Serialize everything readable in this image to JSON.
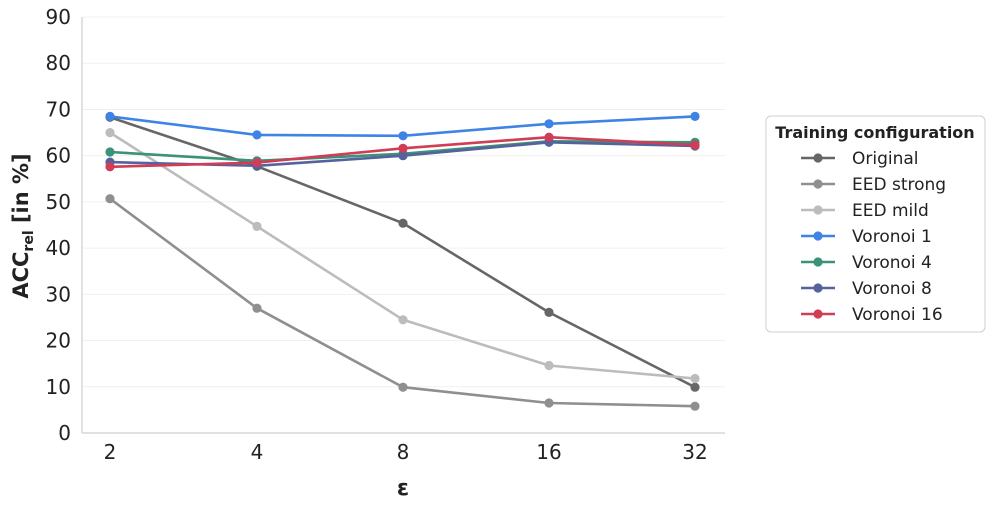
{
  "chart_data": {
    "type": "line",
    "xlabel": "ε",
    "ylabel_main": "ACC",
    "ylabel_sub": "rel",
    "ylabel_suffix": " [in %]",
    "x_categories": [
      "2",
      "4",
      "8",
      "16",
      "32"
    ],
    "y_ticks": [
      "0",
      "10",
      "20",
      "30",
      "40",
      "50",
      "60",
      "70",
      "80",
      "90"
    ],
    "ylim": [
      0,
      90
    ],
    "grid": "horizontal, faint",
    "legend_title": "Training configuration",
    "legend_position": "right",
    "series": [
      {
        "name": "Original",
        "color": "#666666",
        "values": [
          68.3,
          57.7,
          45.4,
          26.1,
          9.9
        ]
      },
      {
        "name": "EED strong",
        "color": "#8f8f8f",
        "values": [
          50.7,
          27.0,
          9.9,
          6.5,
          5.8
        ]
      },
      {
        "name": "EED mild",
        "color": "#bcbcbc",
        "values": [
          65.0,
          44.7,
          24.5,
          14.6,
          11.8
        ]
      },
      {
        "name": "Voronoi 1",
        "color": "#3f84e5",
        "values": [
          68.5,
          64.5,
          64.3,
          66.9,
          68.5
        ]
      },
      {
        "name": "Voronoi 4",
        "color": "#3a9278",
        "values": [
          60.8,
          58.9,
          60.4,
          63.1,
          62.9
        ]
      },
      {
        "name": "Voronoi 8",
        "color": "#55629e",
        "values": [
          58.6,
          57.8,
          60.0,
          62.9,
          62.1
        ]
      },
      {
        "name": "Voronoi 16",
        "color": "#d03d55",
        "values": [
          57.6,
          58.5,
          61.6,
          64.0,
          62.3
        ]
      }
    ]
  }
}
